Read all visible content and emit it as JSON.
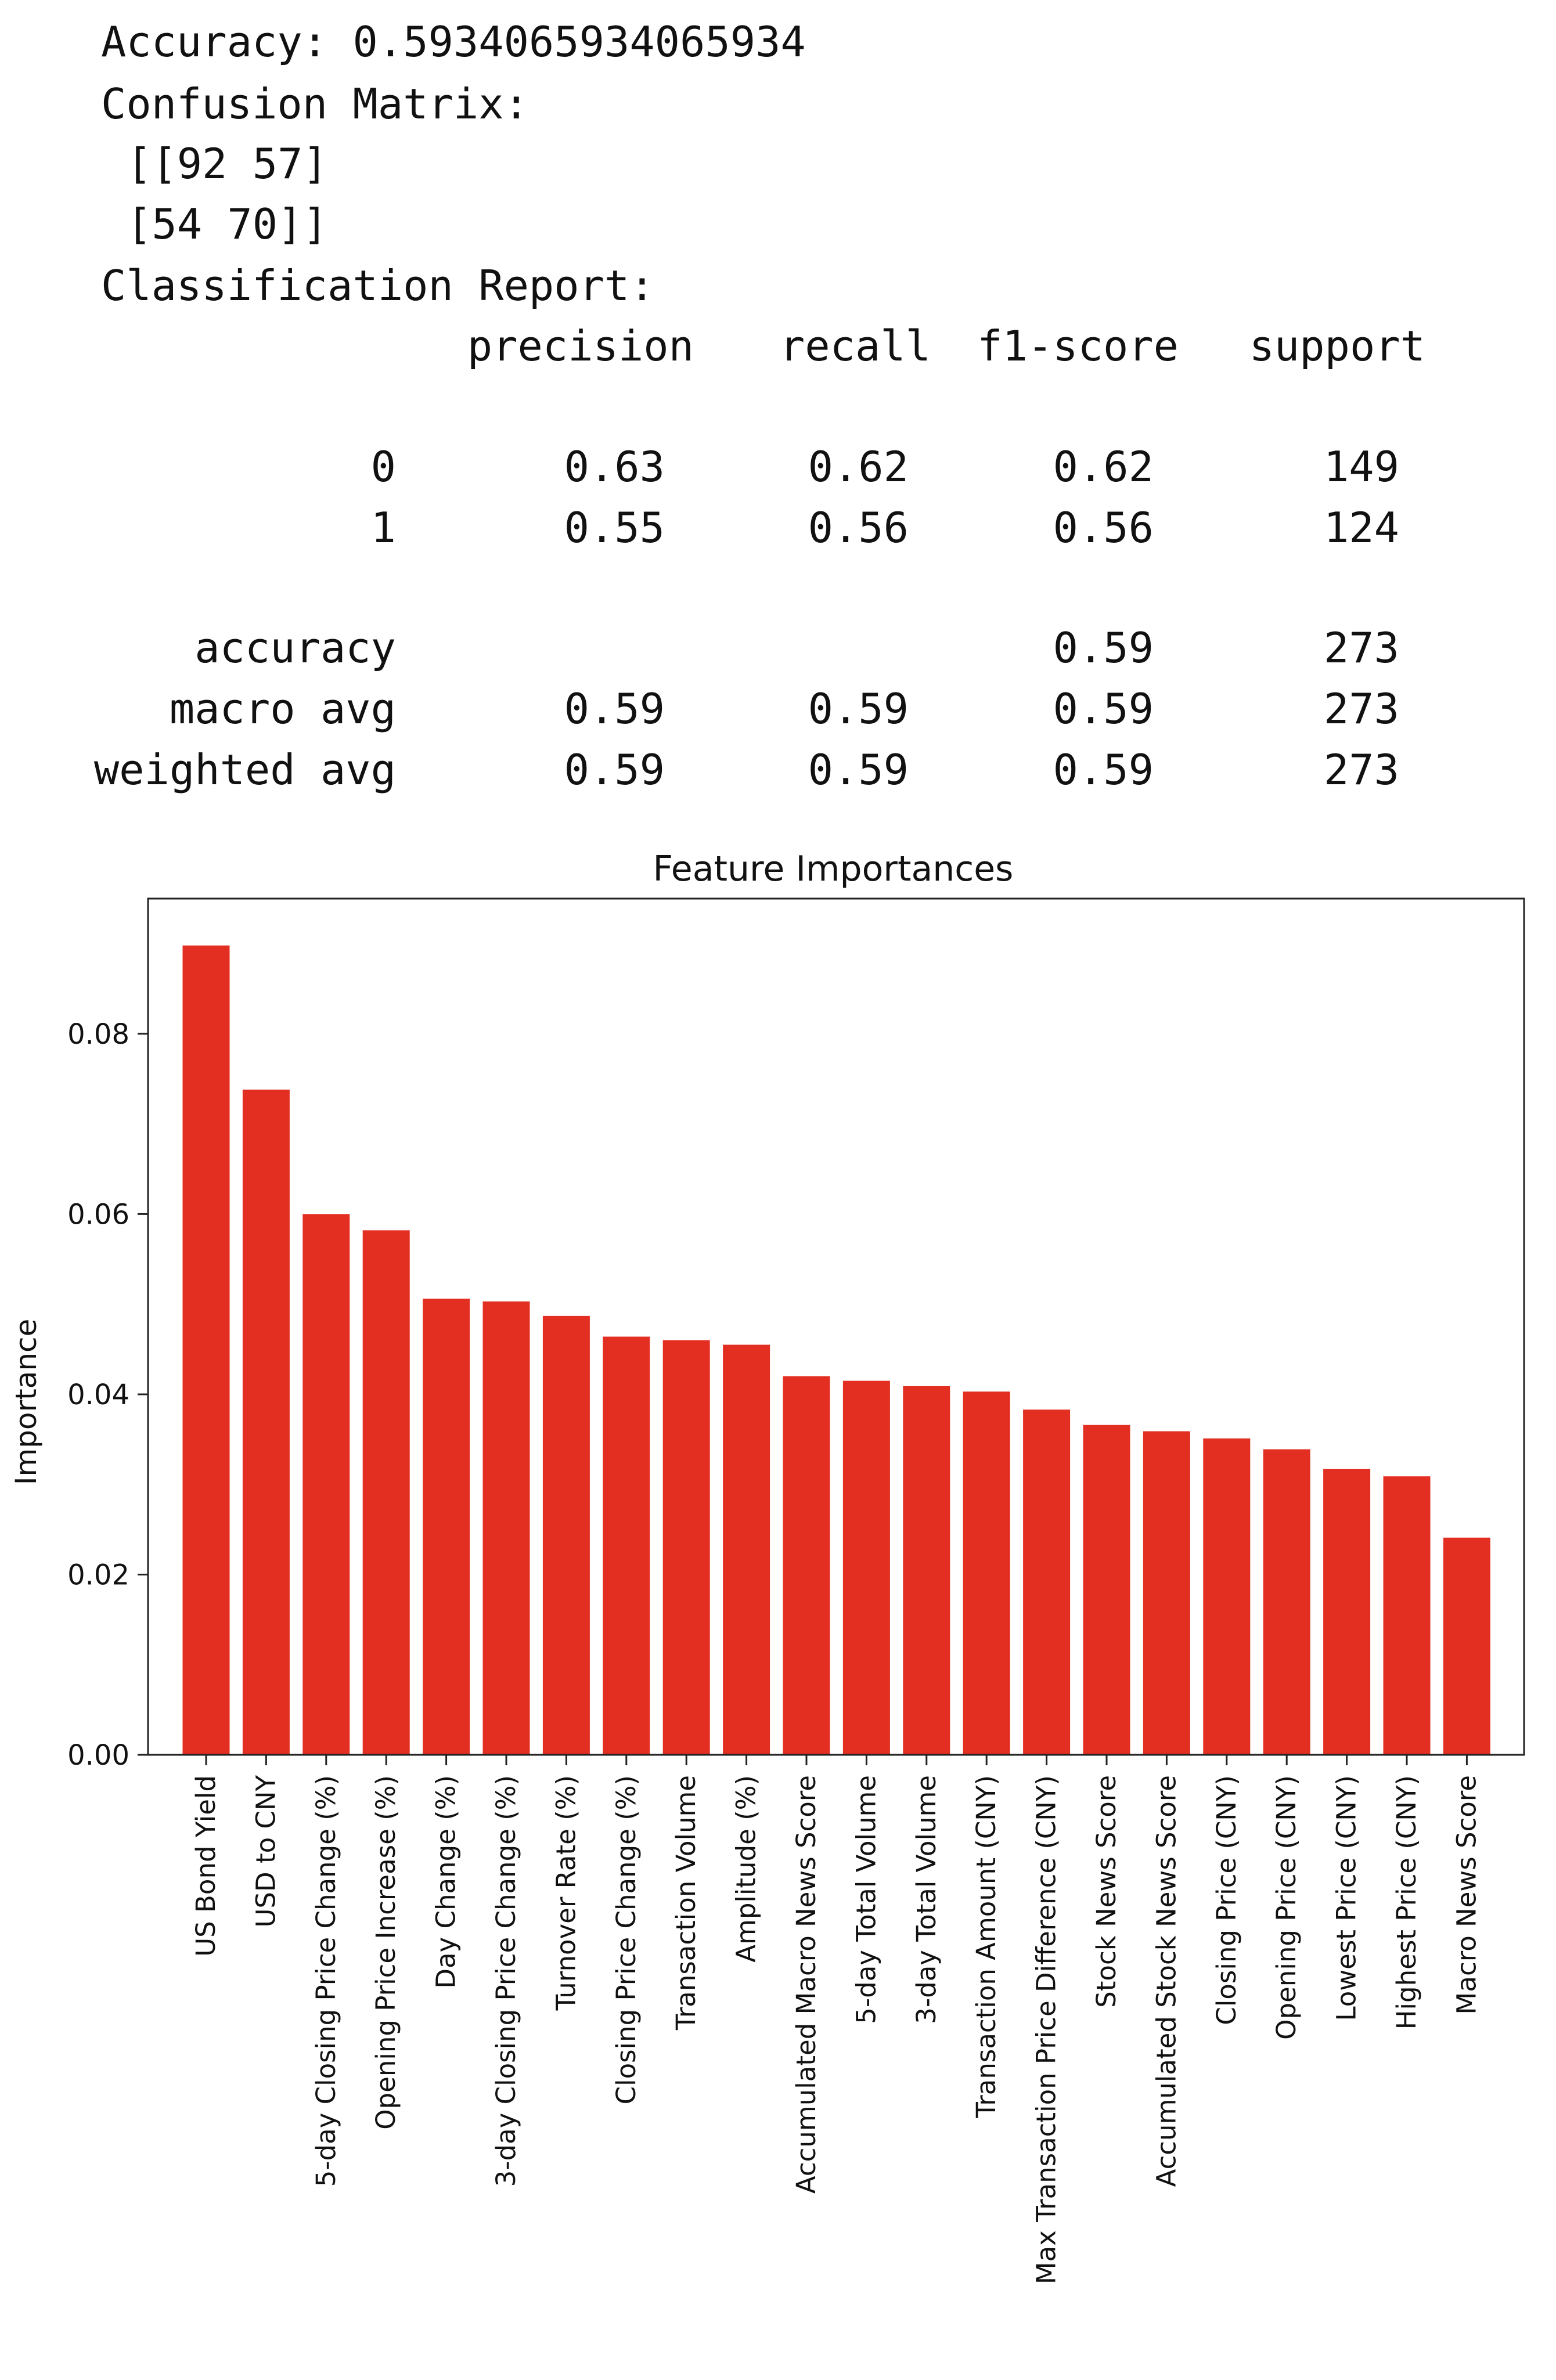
{
  "report": {
    "accuracy_label": "Accuracy:",
    "accuracy_value": "0.5934065934065934",
    "confusion_label": "Confusion Matrix:",
    "confusion_rows": [
      "[[92 57]",
      "[54 70]]"
    ],
    "classification_label": "Classification Report:",
    "columns": [
      "precision",
      "recall",
      "f1-score",
      "support"
    ],
    "rows": [
      {
        "label": "0",
        "precision": "0.63",
        "recall": "0.62",
        "f1": "0.62",
        "support": "149"
      },
      {
        "label": "1",
        "precision": "0.55",
        "recall": "0.56",
        "f1": "0.56",
        "support": "124"
      },
      {
        "label": "accuracy",
        "precision": "",
        "recall": "",
        "f1": "0.59",
        "support": "273"
      },
      {
        "label": "macro avg",
        "precision": "0.59",
        "recall": "0.59",
        "f1": "0.59",
        "support": "273"
      },
      {
        "label": "weighted avg",
        "precision": "0.59",
        "recall": "0.59",
        "f1": "0.59",
        "support": "273"
      }
    ]
  },
  "chart_data": {
    "type": "bar",
    "title": "Feature Importances",
    "xlabel": "",
    "ylabel": "Importance",
    "ylim": [
      0,
      0.095
    ],
    "yticks": [
      0.0,
      0.02,
      0.04,
      0.06,
      0.08
    ],
    "ytick_labels": [
      "0.00",
      "0.02",
      "0.04",
      "0.06",
      "0.08"
    ],
    "bar_color": "#e32f22",
    "grid": false,
    "categories": [
      "US Bond Yield",
      "USD to CNY",
      "5-day Closing Price Change (%)",
      "Opening Price Increase (%)",
      "Day Change (%)",
      "3-day Closing Price Change (%)",
      "Turnover Rate (%)",
      "Closing Price Change (%)",
      "Transaction Volume",
      "Amplitude (%)",
      "Accumulated Macro News Score",
      "5-day Total Volume",
      "3-day Total Volume",
      "Transaction Amount (CNY)",
      "Max Transaction Price Difference (CNY)",
      "Stock News Score",
      "Accumulated Stock News Score",
      "Closing Price (CNY)",
      "Opening Price (CNY)",
      "Lowest Price (CNY)",
      "Highest Price (CNY)",
      "Macro News Score"
    ],
    "values": [
      0.0898,
      0.0738,
      0.06,
      0.0582,
      0.0506,
      0.0503,
      0.0487,
      0.0464,
      0.046,
      0.0455,
      0.042,
      0.0415,
      0.0409,
      0.0403,
      0.0383,
      0.0366,
      0.0359,
      0.0351,
      0.0339,
      0.0317,
      0.0309,
      0.0241
    ]
  }
}
